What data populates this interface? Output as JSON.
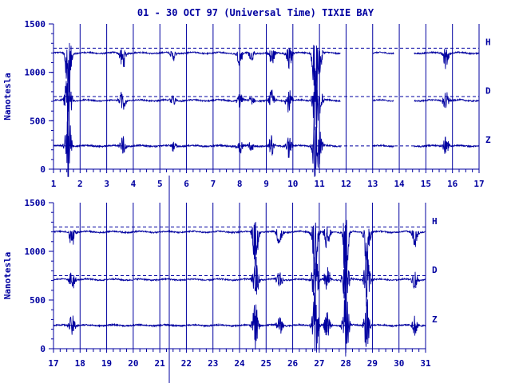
{
  "title": "01 - 30 OCT 97 (Universal Time) TIXIE BAY",
  "colors": {
    "ink": "#0000a0",
    "background": "#ffffff"
  },
  "chart_data": [
    {
      "type": "line",
      "panel": "top",
      "ylabel": "Nanotesla",
      "xlim": [
        1,
        17
      ],
      "ylim": [
        0,
        1500
      ],
      "x_ticks": [
        "1",
        "2",
        "3",
        "4",
        "5",
        "6",
        "7",
        "8",
        "9",
        "10",
        "11",
        "12",
        "13",
        "14",
        "15",
        "16",
        "17"
      ],
      "y_ticks": [
        "0",
        "500",
        "1000",
        "1500"
      ],
      "grid": "vertical lines at each day",
      "series": [
        {
          "name": "H",
          "baseline": 1250,
          "quiet_level": 1200
        },
        {
          "name": "D",
          "baseline": 750,
          "quiet_level": 710
        },
        {
          "name": "Z",
          "baseline": 240,
          "quiet_level": 240
        }
      ],
      "data_gaps": [
        [
          11.8,
          13.0
        ],
        [
          13.8,
          14.55
        ]
      ],
      "disturbed_days": [
        {
          "x": 1.55,
          "amplitude": 420
        },
        {
          "x": 3.6,
          "amplitude": 130
        },
        {
          "x": 5.5,
          "amplitude": 60
        },
        {
          "x": 8.0,
          "amplitude": 90
        },
        {
          "x": 8.45,
          "amplitude": 60
        },
        {
          "x": 9.2,
          "amplitude": 110
        },
        {
          "x": 9.85,
          "amplitude": 130
        },
        {
          "x": 10.85,
          "amplitude": 380
        },
        {
          "x": 11.0,
          "amplitude": 160
        },
        {
          "x": 15.75,
          "amplitude": 110
        }
      ]
    },
    {
      "type": "line",
      "panel": "bottom",
      "ylabel": "Nanotesla",
      "xlim": [
        17,
        31
      ],
      "ylim": [
        0,
        1500
      ],
      "x_ticks": [
        "17",
        "18",
        "19",
        "20",
        "21",
        "22",
        "23",
        "24",
        "25",
        "26",
        "27",
        "28",
        "29",
        "30",
        "31"
      ],
      "y_ticks": [
        "0",
        "500",
        "1000",
        "1500"
      ],
      "grid": "vertical lines at each day",
      "series": [
        {
          "name": "H",
          "baseline": 1250,
          "quiet_level": 1200
        },
        {
          "name": "D",
          "baseline": 750,
          "quiet_level": 710
        },
        {
          "name": "Z",
          "baseline": 240,
          "quiet_level": 240
        }
      ],
      "data_gaps": [],
      "disturbed_days": [
        {
          "x": 17.7,
          "amplitude": 120
        },
        {
          "x": 24.6,
          "amplitude": 260
        },
        {
          "x": 25.5,
          "amplitude": 110
        },
        {
          "x": 26.85,
          "amplitude": 380
        },
        {
          "x": 27.3,
          "amplitude": 150
        },
        {
          "x": 28.0,
          "amplitude": 380
        },
        {
          "x": 28.8,
          "amplitude": 300
        },
        {
          "x": 30.6,
          "amplitude": 110
        }
      ]
    }
  ]
}
